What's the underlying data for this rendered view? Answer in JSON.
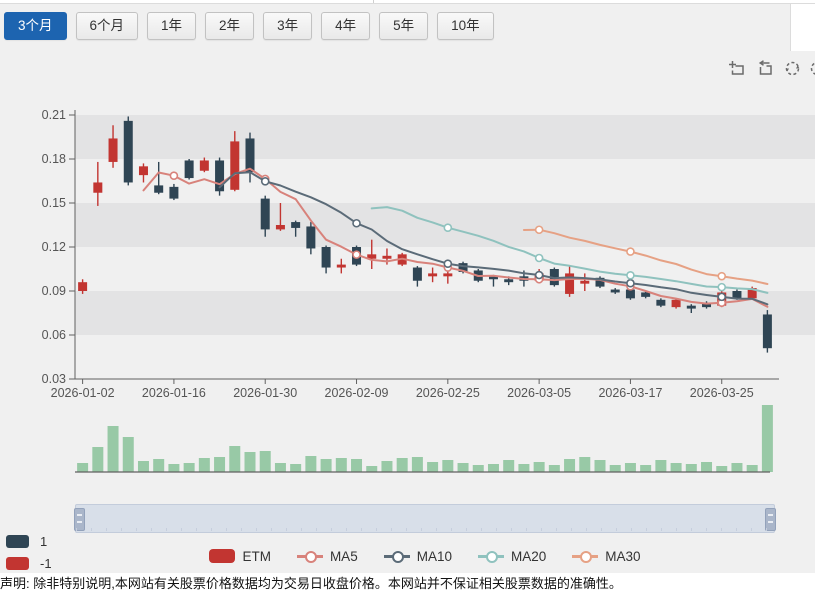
{
  "page": {
    "disclaimer": "声明: 除非特别说明,本网站有关股票价格数据均为交易日收盘价格。本网站并不保证相关股票数据的准确性。"
  },
  "range_buttons": [
    {
      "label": "3个月",
      "selected": true
    },
    {
      "label": "6个月",
      "selected": false
    },
    {
      "label": "1年",
      "selected": false
    },
    {
      "label": "2年",
      "selected": false
    },
    {
      "label": "3年",
      "selected": false
    },
    {
      "label": "4年",
      "selected": false
    },
    {
      "label": "5年",
      "selected": false
    },
    {
      "label": "10年",
      "selected": false
    }
  ],
  "toolbox": {
    "icons": [
      "area-zoom-icon",
      "zoom-reset-icon",
      "restore-icon"
    ]
  },
  "signal_legend": [
    {
      "label": "1",
      "color": "#2f4554"
    },
    {
      "label": "-1",
      "color": "#c23531"
    }
  ],
  "series_legend": [
    {
      "label": "ETM",
      "type": "rect",
      "color": "#c23531"
    },
    {
      "label": "MA5",
      "type": "line",
      "color": "#d8827b"
    },
    {
      "label": "MA10",
      "type": "line",
      "color": "#5b6b78"
    },
    {
      "label": "MA20",
      "type": "line",
      "color": "#8fc2be"
    },
    {
      "label": "MA30",
      "type": "line",
      "color": "#e6a184"
    }
  ],
  "chart_data": {
    "type": "candlestick",
    "title": "",
    "xlabel": "",
    "ylabel": "",
    "ylim": [
      0.03,
      0.21
    ],
    "y_ticks": [
      0.21,
      0.18,
      0.15,
      0.12,
      0.09,
      0.06,
      0.03
    ],
    "x_tick_labels": [
      "2026-01-02",
      "2026-01-16",
      "2026-01-30",
      "2026-02-09",
      "2026-02-25",
      "2026-03-05",
      "2026-03-17",
      "2026-03-25"
    ],
    "x_tick_indices": [
      0,
      6,
      12,
      18,
      24,
      30,
      36,
      42
    ],
    "grid": "horizontal-bands",
    "legend_position": "bottom",
    "up_color": "#c23531",
    "down_color": "#2f4554",
    "volume_color": "#98c9a6",
    "ma_series": [
      {
        "name": "MA5",
        "window": 5,
        "color": "#d8827b"
      },
      {
        "name": "MA10",
        "window": 10,
        "color": "#5b6b78"
      },
      {
        "name": "MA20",
        "window": 20,
        "color": "#8fc2be"
      },
      {
        "name": "MA30",
        "window": 30,
        "color": "#e6a184"
      }
    ],
    "marker_indices": [
      6,
      12,
      18,
      24,
      30,
      36,
      42
    ],
    "candles": [
      {
        "date": "2026-01-02",
        "o": 0.09,
        "h": 0.098,
        "l": 0.088,
        "c": 0.096,
        "v": 9
      },
      {
        "date": "2026-01-07",
        "o": 0.157,
        "h": 0.178,
        "l": 0.148,
        "c": 0.164,
        "v": 25
      },
      {
        "date": "2026-01-08",
        "o": 0.178,
        "h": 0.203,
        "l": 0.174,
        "c": 0.194,
        "v": 46
      },
      {
        "date": "2026-01-09",
        "o": 0.206,
        "h": 0.209,
        "l": 0.162,
        "c": 0.164,
        "v": 35
      },
      {
        "date": "2026-01-13",
        "o": 0.169,
        "h": 0.177,
        "l": 0.164,
        "c": 0.175,
        "v": 11
      },
      {
        "date": "2026-01-15",
        "o": 0.162,
        "h": 0.178,
        "l": 0.156,
        "c": 0.157,
        "v": 13
      },
      {
        "date": "2026-01-16",
        "o": 0.161,
        "h": 0.163,
        "l": 0.152,
        "c": 0.153,
        "v": 8
      },
      {
        "date": "2026-01-19",
        "o": 0.179,
        "h": 0.18,
        "l": 0.166,
        "c": 0.167,
        "v": 9
      },
      {
        "date": "2026-01-20",
        "o": 0.172,
        "h": 0.181,
        "l": 0.171,
        "c": 0.179,
        "v": 14
      },
      {
        "date": "2026-01-22",
        "o": 0.179,
        "h": 0.181,
        "l": 0.155,
        "c": 0.158,
        "v": 15
      },
      {
        "date": "2026-01-26",
        "o": 0.159,
        "h": 0.199,
        "l": 0.158,
        "c": 0.192,
        "v": 26
      },
      {
        "date": "2026-01-28",
        "o": 0.194,
        "h": 0.198,
        "l": 0.164,
        "c": 0.171,
        "v": 20
      },
      {
        "date": "2026-01-30",
        "o": 0.153,
        "h": 0.155,
        "l": 0.127,
        "c": 0.132,
        "v": 21
      },
      {
        "date": "2026-02-02",
        "o": 0.132,
        "h": 0.15,
        "l": 0.131,
        "c": 0.135,
        "v": 9
      },
      {
        "date": "2026-02-03",
        "o": 0.137,
        "h": 0.138,
        "l": 0.127,
        "c": 0.133,
        "v": 8
      },
      {
        "date": "2026-02-04",
        "o": 0.134,
        "h": 0.137,
        "l": 0.115,
        "c": 0.119,
        "v": 16
      },
      {
        "date": "2026-02-05",
        "o": 0.12,
        "h": 0.121,
        "l": 0.102,
        "c": 0.106,
        "v": 13
      },
      {
        "date": "2026-02-06",
        "o": 0.106,
        "h": 0.112,
        "l": 0.102,
        "c": 0.108,
        "v": 14
      },
      {
        "date": "2026-02-09",
        "o": 0.12,
        "h": 0.121,
        "l": 0.107,
        "c": 0.108,
        "v": 13
      },
      {
        "date": "2026-02-10",
        "o": 0.112,
        "h": 0.125,
        "l": 0.105,
        "c": 0.115,
        "v": 6
      },
      {
        "date": "2026-02-11",
        "o": 0.112,
        "h": 0.119,
        "l": 0.108,
        "c": 0.114,
        "v": 11
      },
      {
        "date": "2026-02-13",
        "o": 0.108,
        "h": 0.116,
        "l": 0.107,
        "c": 0.115,
        "v": 14
      },
      {
        "date": "2026-02-18",
        "o": 0.106,
        "h": 0.107,
        "l": 0.093,
        "c": 0.097,
        "v": 15
      },
      {
        "date": "2026-02-20",
        "o": 0.1,
        "h": 0.106,
        "l": 0.096,
        "c": 0.102,
        "v": 10
      },
      {
        "date": "2026-02-25",
        "o": 0.1,
        "h": 0.105,
        "l": 0.095,
        "c": 0.102,
        "v": 12
      },
      {
        "date": "2026-02-26",
        "o": 0.109,
        "h": 0.11,
        "l": 0.102,
        "c": 0.103,
        "v": 9
      },
      {
        "date": "2026-02-27",
        "o": 0.104,
        "h": 0.105,
        "l": 0.096,
        "c": 0.097,
        "v": 7
      },
      {
        "date": "2026-03-02",
        "o": 0.1,
        "h": 0.101,
        "l": 0.093,
        "c": 0.098,
        "v": 8
      },
      {
        "date": "2026-03-03",
        "o": 0.098,
        "h": 0.1,
        "l": 0.094,
        "c": 0.096,
        "v": 12
      },
      {
        "date": "2026-03-04",
        "o": 0.1,
        "h": 0.104,
        "l": 0.093,
        "c": 0.097,
        "v": 8
      },
      {
        "date": "2026-03-05",
        "o": 0.097,
        "h": 0.105,
        "l": 0.096,
        "c": 0.102,
        "v": 10
      },
      {
        "date": "2026-03-06",
        "o": 0.105,
        "h": 0.106,
        "l": 0.093,
        "c": 0.094,
        "v": 7
      },
      {
        "date": "2026-03-09",
        "o": 0.088,
        "h": 0.107,
        "l": 0.086,
        "c": 0.102,
        "v": 13
      },
      {
        "date": "2026-03-11",
        "o": 0.095,
        "h": 0.102,
        "l": 0.09,
        "c": 0.097,
        "v": 15
      },
      {
        "date": "2026-03-12",
        "o": 0.099,
        "h": 0.1,
        "l": 0.092,
        "c": 0.093,
        "v": 12
      },
      {
        "date": "2026-03-16",
        "o": 0.091,
        "h": 0.092,
        "l": 0.088,
        "c": 0.089,
        "v": 7
      },
      {
        "date": "2026-03-17",
        "o": 0.091,
        "h": 0.092,
        "l": 0.084,
        "c": 0.085,
        "v": 9
      },
      {
        "date": "2026-03-18",
        "o": 0.089,
        "h": 0.09,
        "l": 0.085,
        "c": 0.086,
        "v": 7
      },
      {
        "date": "2026-03-19",
        "o": 0.084,
        "h": 0.085,
        "l": 0.079,
        "c": 0.08,
        "v": 12
      },
      {
        "date": "2026-03-20",
        "o": 0.079,
        "h": 0.085,
        "l": 0.078,
        "c": 0.084,
        "v": 9
      },
      {
        "date": "2026-03-23",
        "o": 0.08,
        "h": 0.081,
        "l": 0.075,
        "c": 0.078,
        "v": 8
      },
      {
        "date": "2026-03-24",
        "o": 0.082,
        "h": 0.083,
        "l": 0.078,
        "c": 0.079,
        "v": 10
      },
      {
        "date": "2026-03-25",
        "o": 0.08,
        "h": 0.09,
        "l": 0.079,
        "c": 0.089,
        "v": 6
      },
      {
        "date": "2026-03-26",
        "o": 0.09,
        "h": 0.091,
        "l": 0.084,
        "c": 0.085,
        "v": 9
      },
      {
        "date": "2026-03-27",
        "o": 0.085,
        "h": 0.093,
        "l": 0.084,
        "c": 0.092,
        "v": 7
      },
      {
        "date": "2026-03-30",
        "o": 0.074,
        "h": 0.077,
        "l": 0.048,
        "c": 0.051,
        "v": 67
      }
    ]
  }
}
